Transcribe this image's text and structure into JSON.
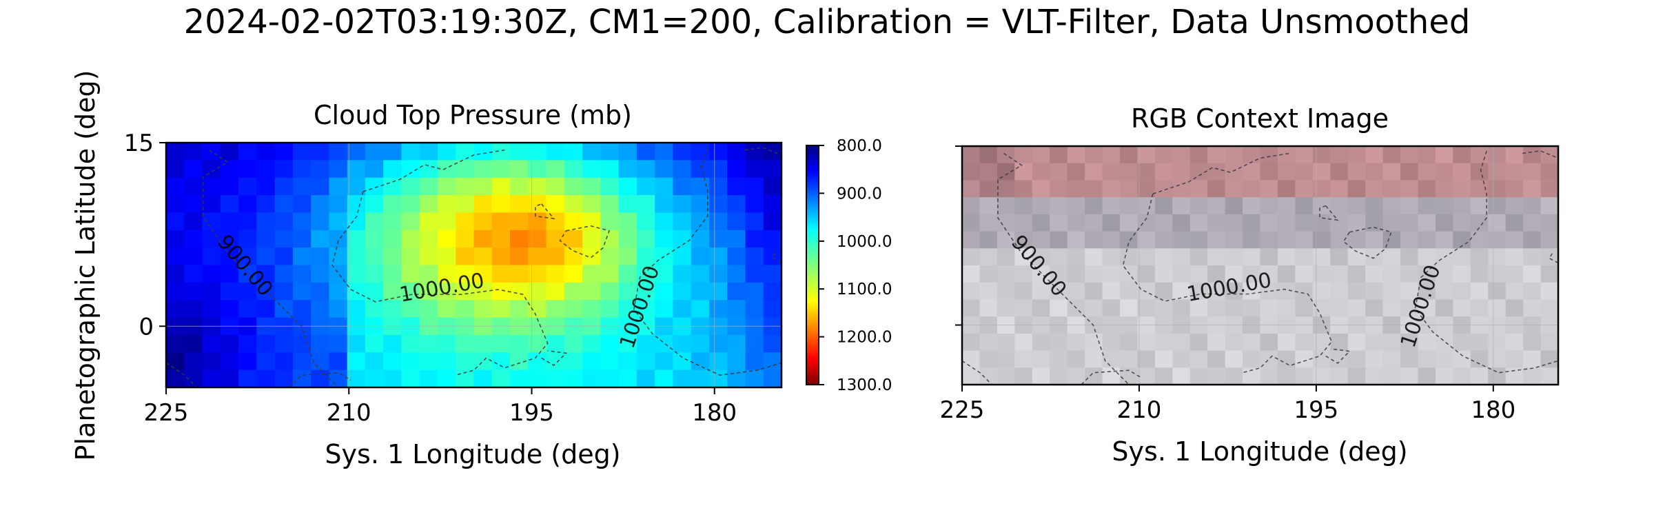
{
  "figure": {
    "suptitle": "2024-02-02T03:19:30Z, CM1=200, Calibration = VLT-Filter, Data Unsmoothed"
  },
  "chart_data": [
    {
      "type": "heatmap",
      "title": "Cloud Top Pressure (mb)",
      "xlabel": "Sys. 1 Longitude (deg)",
      "ylabel": "Planetographic Latitude (deg)",
      "xlim": [
        225,
        174.5
      ],
      "ylim": [
        -5,
        15
      ],
      "xticks": [
        225,
        210,
        195,
        180
      ],
      "yticks": [
        15,
        0
      ],
      "grid": true,
      "colormap": "jet_r",
      "colorbar": {
        "range": [
          800,
          1300
        ],
        "ticks": [
          "800.0",
          "900.0",
          "1000.0",
          "1100.0",
          "1200.0",
          "1300.0"
        ],
        "tick_values": [
          800,
          900,
          1000,
          1100,
          1200,
          1300
        ]
      },
      "contours": [
        {
          "level": 900,
          "label": "900.00",
          "style": "dashed"
        },
        {
          "level": 1000,
          "label": "1000.00",
          "style": "dashed"
        },
        {
          "level": 1000,
          "label": "1000.00",
          "style": "dashed"
        }
      ],
      "field_description": "low pressure (~850-900 mb) at western and eastern edges, high pressure (~1050-1100 mb) in central region near 195-200 deg, 5-10 deg latitude"
    },
    {
      "type": "heatmap",
      "title": "RGB Context Image",
      "xlabel": "Sys. 1 Longitude (deg)",
      "xlim": [
        225,
        174.5
      ],
      "ylim": [
        -5,
        15
      ],
      "xticks": [
        225,
        210,
        195,
        180
      ],
      "grid": true,
      "contours": [
        {
          "level": 900,
          "label": "900.00",
          "style": "dashed"
        },
        {
          "level": 1000,
          "label": "1000.00",
          "style": "dashed"
        },
        {
          "level": 1000,
          "label": "1000.00",
          "style": "dashed"
        }
      ]
    }
  ]
}
